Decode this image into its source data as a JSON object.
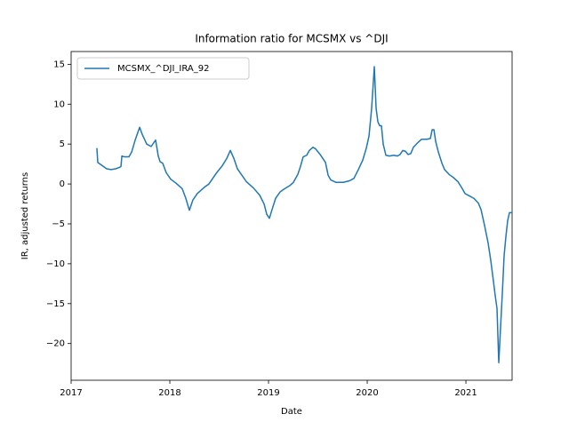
{
  "chart_data": {
    "type": "line",
    "title": "Information ratio for MCSMX vs ^DJI",
    "x_label": "Date",
    "y_label": "IR, adjusted returns",
    "x": [
      2017.261,
      2017.27,
      2017.315,
      2017.36,
      2017.405,
      2017.45,
      2017.495,
      2017.505,
      2017.514,
      2017.541,
      2017.586,
      2017.613,
      2017.649,
      2017.694,
      2017.721,
      2017.766,
      2017.811,
      2017.856,
      2017.883,
      2017.901,
      2017.928,
      2017.964,
      2018.009,
      2018.063,
      2018.126,
      2018.162,
      2018.198,
      2018.234,
      2018.279,
      2018.351,
      2018.396,
      2018.468,
      2018.532,
      2018.577,
      2018.613,
      2018.649,
      2018.685,
      2018.73,
      2018.775,
      2018.847,
      2018.91,
      2018.955,
      2018.982,
      2019.009,
      2019.036,
      2019.072,
      2019.117,
      2019.162,
      2019.216,
      2019.252,
      2019.297,
      2019.324,
      2019.351,
      2019.387,
      2019.414,
      2019.45,
      2019.477,
      2019.523,
      2019.577,
      2019.604,
      2019.631,
      2019.685,
      2019.757,
      2019.82,
      2019.865,
      2019.91,
      2019.955,
      2019.991,
      2020.018,
      2020.045,
      2020.072,
      2020.09,
      2020.108,
      2020.126,
      2020.144,
      2020.162,
      2020.189,
      2020.225,
      2020.27,
      2020.306,
      2020.333,
      2020.36,
      2020.387,
      2020.414,
      2020.441,
      2020.468,
      2020.514,
      2020.55,
      2020.604,
      2020.64,
      2020.658,
      2020.676,
      2020.694,
      2020.721,
      2020.757,
      2020.784,
      2020.829,
      2020.874,
      2020.919,
      2020.964,
      2020.991,
      2021.036,
      2021.081,
      2021.126,
      2021.153,
      2021.189,
      2021.225,
      2021.252,
      2021.279,
      2021.297,
      2021.315,
      2021.333,
      2021.351,
      2021.369,
      2021.387,
      2021.405,
      2021.423,
      2021.441,
      2021.468
    ],
    "series": [
      {
        "name": "MCSMX_^DJI_IRA_92",
        "color": "#1f77b4",
        "values": [
          4.5,
          2.7,
          2.3,
          1.9,
          1.8,
          1.9,
          2.1,
          2.2,
          3.5,
          3.4,
          3.4,
          4.0,
          5.5,
          7.1,
          6.2,
          5.0,
          4.7,
          5.5,
          3.5,
          2.8,
          2.6,
          1.4,
          0.6,
          0.1,
          -0.6,
          -1.8,
          -3.3,
          -2.0,
          -1.2,
          -0.4,
          0.0,
          1.3,
          2.3,
          3.2,
          4.2,
          3.2,
          1.9,
          1.1,
          0.3,
          -0.5,
          -1.4,
          -2.5,
          -3.8,
          -4.3,
          -3.2,
          -1.8,
          -1.0,
          -0.6,
          -0.2,
          0.2,
          1.2,
          2.2,
          3.4,
          3.6,
          4.2,
          4.6,
          4.4,
          3.7,
          2.7,
          1.1,
          0.5,
          0.2,
          0.2,
          0.4,
          0.7,
          1.8,
          3.0,
          4.5,
          6.0,
          9.5,
          14.7,
          9.5,
          7.8,
          7.3,
          7.3,
          5.0,
          3.6,
          3.5,
          3.6,
          3.5,
          3.7,
          4.2,
          4.1,
          3.7,
          3.8,
          4.6,
          5.2,
          5.6,
          5.6,
          5.7,
          6.8,
          6.8,
          5.3,
          4.0,
          2.6,
          1.8,
          1.2,
          0.8,
          0.3,
          -0.6,
          -1.2,
          -1.5,
          -1.8,
          -2.4,
          -3.2,
          -5.2,
          -7.4,
          -9.6,
          -12.2,
          -14.0,
          -15.6,
          -22.4,
          -18.0,
          -13.7,
          -9.0,
          -6.6,
          -4.6,
          -3.6,
          -3.6
        ]
      }
    ],
    "xlim": [
      2017,
      2021.468
    ],
    "xticks": [
      2017,
      2018,
      2019,
      2020,
      2021
    ],
    "ylim": [
      -24.6,
      16.6
    ],
    "yticks": [
      {
        "value": -20,
        "label": "−20"
      },
      {
        "value": -15,
        "label": "−15"
      },
      {
        "value": -10,
        "label": "−10"
      },
      {
        "value": -5,
        "label": "−5"
      },
      0,
      5,
      10,
      15
    ],
    "legend": "upper left",
    "grid": false
  }
}
